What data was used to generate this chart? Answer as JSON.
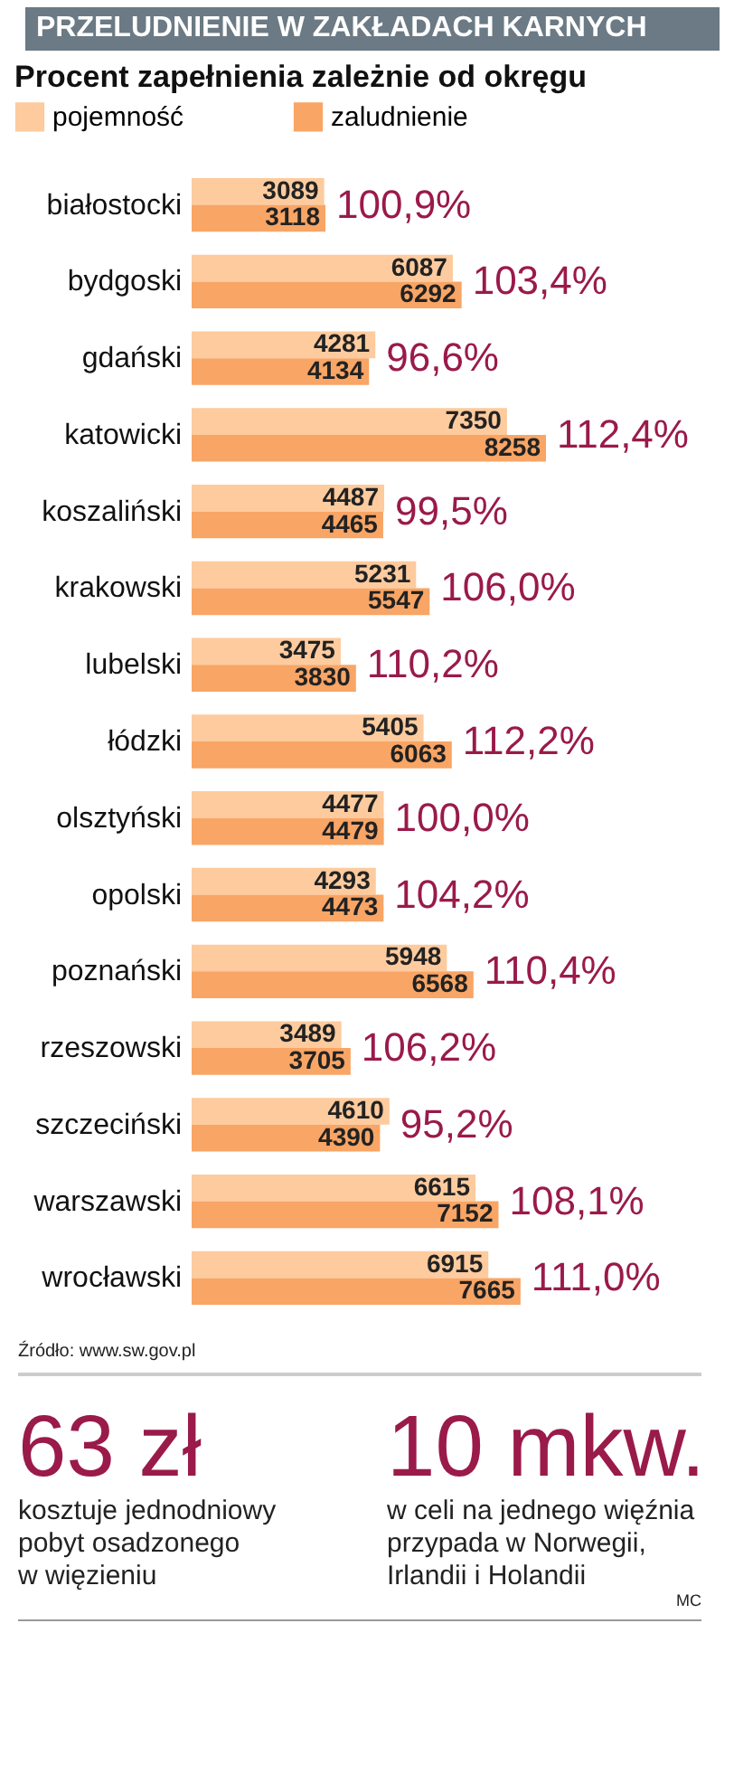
{
  "chart_data": {
    "type": "bar",
    "orientation": "horizontal",
    "title": "PRZELUDNIENIE W ZAKŁADACH KARNYCH",
    "subtitle": "Procent zapełnienia zależnie od okręgu",
    "categories": [
      "białostocki",
      "bydgoski",
      "gdański",
      "katowicki",
      "koszaliński",
      "krakowski",
      "lubelski",
      "łódzki",
      "olsztyński",
      "opolski",
      "poznański",
      "rzeszowski",
      "szczeciński",
      "warszawski",
      "wrocławski"
    ],
    "series": [
      {
        "name": "pojemność",
        "color": "#fdcb9e",
        "values": [
          3089,
          6087,
          4281,
          7350,
          4487,
          5231,
          3475,
          5405,
          4477,
          4293,
          5948,
          3489,
          4610,
          6615,
          6915
        ]
      },
      {
        "name": "zaludnienie",
        "color": "#f8a565",
        "values": [
          3118,
          6292,
          4134,
          8258,
          4465,
          5547,
          3830,
          6063,
          4479,
          4473,
          6568,
          3705,
          4390,
          7152,
          7665
        ]
      }
    ],
    "data_labels": true,
    "legend": "top left",
    "annotations": [
      {
        "text": "100,9%",
        "x": 3118,
        "y": "białostocki"
      },
      {
        "text": "103,4%",
        "x": 6292,
        "y": "bydgoski"
      },
      {
        "text": "96,6%",
        "x": 4281,
        "y": "gdański"
      },
      {
        "text": "112,4%",
        "x": 8258,
        "y": "katowicki"
      },
      {
        "text": "99,5%",
        "x": 4487,
        "y": "koszaliński"
      },
      {
        "text": "106,0%",
        "x": 5547,
        "y": "krakowski"
      },
      {
        "text": "110,2%",
        "x": 3830,
        "y": "lubelski"
      },
      {
        "text": "112,2%",
        "x": 6063,
        "y": "łódzki"
      },
      {
        "text": "100,0%",
        "x": 4479,
        "y": "olsztyński"
      },
      {
        "text": "104,2%",
        "x": 4473,
        "y": "opolski"
      },
      {
        "text": "110,4%",
        "x": 6568,
        "y": "poznański"
      },
      {
        "text": "106,2%",
        "x": 3705,
        "y": "rzeszowski"
      },
      {
        "text": "95,2%",
        "x": 4610,
        "y": "szczeciński"
      },
      {
        "text": "108,1%",
        "x": 7152,
        "y": "warszawski"
      },
      {
        "text": "111,0%",
        "x": 7665,
        "y": "wrocławski"
      },
      "Źródło: www.sw.gov.pl",
      "63 zł",
      "kosztuje jednodniowy\npobyt osadzonego\nw więzieniu",
      "10 mkw.",
      "w celi na jednego więźnia\nprzypada w  Norwegii,\nIrlandii i Holandii",
      "MC"
    ]
  }
}
